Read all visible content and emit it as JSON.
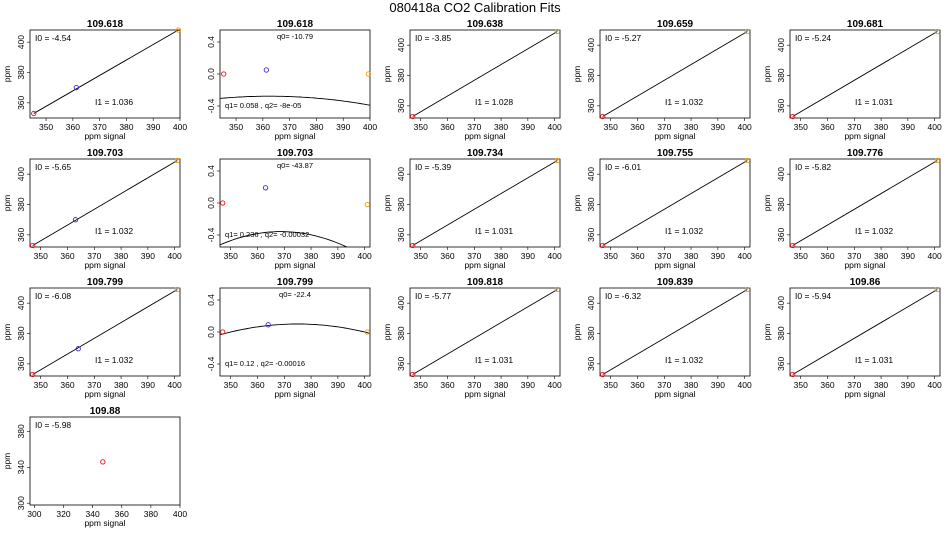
{
  "title": "080418a   CO2 Calibration Fits",
  "colors": {
    "low": "#e8101a",
    "mid": "#3a2fd0",
    "high": "#f09a00",
    "line": "#000000"
  },
  "chart_data": [
    {
      "type": "scatter",
      "title": "109.618",
      "xlabel": "ppm signal",
      "ylabel": "ppm",
      "xlim": [
        344,
        400
      ],
      "ylim": [
        350,
        408
      ],
      "xticks": [
        350,
        360,
        370,
        380,
        390,
        400
      ],
      "yticks": [
        360,
        380,
        400
      ],
      "fit": {
        "kind": "linear",
        "label_i0": "I0 =  -4.54",
        "label_i1": "I1 =  1.036"
      },
      "points": [
        {
          "x": 345.4,
          "y": 353,
          "c": "low"
        },
        {
          "x": 361.3,
          "y": 370,
          "c": "mid"
        },
        {
          "x": 399.4,
          "y": 408,
          "c": "high"
        }
      ]
    },
    {
      "type": "scatter",
      "title": "109.618",
      "xlabel": "ppm signal",
      "ylabel": "",
      "xlim": [
        344,
        400
      ],
      "ylim": [
        -0.55,
        0.55
      ],
      "xticks": [
        350,
        360,
        370,
        380,
        390,
        400
      ],
      "yticks": [
        -0.4,
        0,
        0.4
      ],
      "yfmt": "1",
      "fit": {
        "kind": "quad",
        "label_q0": "q0= -10.79",
        "label_q12": "q1= 0.058 , q2= -8e-05",
        "coef": [
          -10.79,
          0.058,
          -8e-05
        ]
      },
      "points": [
        {
          "x": 345.4,
          "y": 0.0,
          "c": "low"
        },
        {
          "x": 361.3,
          "y": 0.05,
          "c": "mid"
        },
        {
          "x": 399.4,
          "y": 0.0,
          "c": "high"
        }
      ]
    },
    {
      "type": "scatter",
      "title": "109.638",
      "xlabel": "ppm signal",
      "ylabel": "ppm",
      "xlim": [
        346,
        402
      ],
      "ylim": [
        352,
        410
      ],
      "xticks": [
        350,
        360,
        370,
        380,
        390,
        400
      ],
      "yticks": [
        360,
        380,
        400
      ],
      "fit": {
        "kind": "linear",
        "label_i0": "I0 =  -3.85",
        "label_i1": "I1 =  1.028"
      },
      "points": [
        {
          "x": 347,
          "y": 353,
          "c": "low"
        },
        {
          "x": 401,
          "y": 409,
          "c": "high"
        }
      ]
    },
    {
      "type": "scatter",
      "title": "109.659",
      "xlabel": "ppm signal",
      "ylabel": "ppm",
      "xlim": [
        346,
        402
      ],
      "ylim": [
        352,
        410
      ],
      "xticks": [
        350,
        360,
        370,
        380,
        390,
        400
      ],
      "yticks": [
        360,
        380,
        400
      ],
      "fit": {
        "kind": "linear",
        "label_i0": "I0 =  -5.27",
        "label_i1": "I1 =  1.032"
      },
      "points": [
        {
          "x": 347,
          "y": 353,
          "c": "low"
        },
        {
          "x": 401,
          "y": 409,
          "c": "high"
        }
      ]
    },
    {
      "type": "scatter",
      "title": "109.681",
      "xlabel": "ppm signal",
      "ylabel": "ppm",
      "xlim": [
        346,
        402
      ],
      "ylim": [
        352,
        410
      ],
      "xticks": [
        350,
        360,
        370,
        380,
        390,
        400
      ],
      "yticks": [
        360,
        380,
        400
      ],
      "fit": {
        "kind": "linear",
        "label_i0": "I0 =  -5.24",
        "label_i1": "I1 =  1.031"
      },
      "points": [
        {
          "x": 347,
          "y": 353,
          "c": "low"
        },
        {
          "x": 401,
          "y": 409,
          "c": "high"
        }
      ]
    },
    {
      "type": "scatter",
      "title": "109.703",
      "xlabel": "ppm signal",
      "ylabel": "ppm",
      "xlim": [
        346,
        402
      ],
      "ylim": [
        352,
        410
      ],
      "xticks": [
        350,
        360,
        370,
        380,
        390,
        400
      ],
      "yticks": [
        360,
        380,
        400
      ],
      "fit": {
        "kind": "linear",
        "label_i0": "I0 =  -5.65",
        "label_i1": "I1 =  1.032"
      },
      "points": [
        {
          "x": 347,
          "y": 353,
          "c": "low"
        },
        {
          "x": 363,
          "y": 370,
          "c": "mid"
        },
        {
          "x": 401,
          "y": 409,
          "c": "high"
        }
      ]
    },
    {
      "type": "scatter",
      "title": "109.703",
      "xlabel": "ppm signal",
      "ylabel": "",
      "xlim": [
        346,
        402
      ],
      "ylim": [
        -0.55,
        0.55
      ],
      "xticks": [
        350,
        360,
        370,
        380,
        390,
        400
      ],
      "yticks": [
        -0.4,
        0,
        0.4
      ],
      "yfmt": "1",
      "fit": {
        "kind": "quad",
        "label_q0": "q0= -43.87",
        "label_q12": "q1= 0.236 , q2= -0.00032",
        "coef": [
          -43.87,
          0.236,
          -0.00032
        ]
      },
      "points": [
        {
          "x": 347,
          "y": 0.0,
          "c": "low"
        },
        {
          "x": 363,
          "y": 0.19,
          "c": "mid"
        },
        {
          "x": 401,
          "y": -0.02,
          "c": "high"
        }
      ]
    },
    {
      "type": "scatter",
      "title": "109.734",
      "xlabel": "ppm signal",
      "ylabel": "ppm",
      "xlim": [
        346,
        402
      ],
      "ylim": [
        352,
        410
      ],
      "xticks": [
        350,
        360,
        370,
        380,
        390,
        400
      ],
      "yticks": [
        360,
        380,
        400
      ],
      "fit": {
        "kind": "linear",
        "label_i0": "I0 =  -5.39",
        "label_i1": "I1 =  1.031"
      },
      "points": [
        {
          "x": 347,
          "y": 353,
          "c": "low"
        },
        {
          "x": 401,
          "y": 409,
          "c": "high"
        }
      ]
    },
    {
      "type": "scatter",
      "title": "109.755",
      "xlabel": "ppm signal",
      "ylabel": "ppm",
      "xlim": [
        346,
        402
      ],
      "ylim": [
        352,
        410
      ],
      "xticks": [
        350,
        360,
        370,
        380,
        390,
        400
      ],
      "yticks": [
        360,
        380,
        400
      ],
      "fit": {
        "kind": "linear",
        "label_i0": "I0 =  -6.01",
        "label_i1": "I1 =  1.032"
      },
      "points": [
        {
          "x": 347,
          "y": 353,
          "c": "low"
        },
        {
          "x": 401,
          "y": 409,
          "c": "high"
        }
      ]
    },
    {
      "type": "scatter",
      "title": "109.776",
      "xlabel": "ppm signal",
      "ylabel": "ppm",
      "xlim": [
        346,
        402
      ],
      "ylim": [
        352,
        410
      ],
      "xticks": [
        350,
        360,
        370,
        380,
        390,
        400
      ],
      "yticks": [
        360,
        380,
        400
      ],
      "fit": {
        "kind": "linear",
        "label_i0": "I0 =  -5.82",
        "label_i1": "I1 =  1.032"
      },
      "points": [
        {
          "x": 347,
          "y": 353,
          "c": "low"
        },
        {
          "x": 401,
          "y": 409,
          "c": "high"
        }
      ]
    },
    {
      "type": "scatter",
      "title": "109.799",
      "xlabel": "ppm signal",
      "ylabel": "ppm",
      "xlim": [
        346,
        402
      ],
      "ylim": [
        352,
        410
      ],
      "xticks": [
        350,
        360,
        370,
        380,
        390,
        400
      ],
      "yticks": [
        360,
        380,
        400
      ],
      "fit": {
        "kind": "linear",
        "label_i0": "I0 =  -6.08",
        "label_i1": "I1 =  1.032"
      },
      "points": [
        {
          "x": 347,
          "y": 353,
          "c": "low"
        },
        {
          "x": 364,
          "y": 370,
          "c": "mid"
        },
        {
          "x": 401,
          "y": 409,
          "c": "high"
        }
      ]
    },
    {
      "type": "scatter",
      "title": "109.799",
      "xlabel": "ppm signal",
      "ylabel": "",
      "xlim": [
        346,
        402
      ],
      "ylim": [
        -0.55,
        0.55
      ],
      "xticks": [
        350,
        360,
        370,
        380,
        390,
        400
      ],
      "yticks": [
        -0.4,
        0,
        0.4
      ],
      "yfmt": "1",
      "fit": {
        "kind": "quad",
        "label_q0": "q0= -22.4",
        "label_q12": "q1= 0.12 , q2= -0.00016",
        "coef": [
          -22.4,
          0.12,
          -0.00016
        ]
      },
      "points": [
        {
          "x": 347,
          "y": 0.0,
          "c": "low"
        },
        {
          "x": 364,
          "y": 0.09,
          "c": "mid"
        },
        {
          "x": 401,
          "y": 0.0,
          "c": "high"
        }
      ]
    },
    {
      "type": "scatter",
      "title": "109.818",
      "xlabel": "ppm signal",
      "ylabel": "ppm",
      "xlim": [
        346,
        402
      ],
      "ylim": [
        352,
        410
      ],
      "xticks": [
        350,
        360,
        370,
        380,
        390,
        400
      ],
      "yticks": [
        360,
        380,
        400
      ],
      "fit": {
        "kind": "linear",
        "label_i0": "I0 =  -5.77",
        "label_i1": "I1 =  1.031"
      },
      "points": [
        {
          "x": 347,
          "y": 353,
          "c": "low"
        },
        {
          "x": 401,
          "y": 409,
          "c": "high"
        }
      ]
    },
    {
      "type": "scatter",
      "title": "109.839",
      "xlabel": "ppm signal",
      "ylabel": "ppm",
      "xlim": [
        346,
        402
      ],
      "ylim": [
        352,
        410
      ],
      "xticks": [
        350,
        360,
        370,
        380,
        390,
        400
      ],
      "yticks": [
        360,
        380,
        400
      ],
      "fit": {
        "kind": "linear",
        "label_i0": "I0 =  -6.32",
        "label_i1": "I1 =  1.032"
      },
      "points": [
        {
          "x": 347,
          "y": 353,
          "c": "low"
        },
        {
          "x": 401,
          "y": 409,
          "c": "high"
        }
      ]
    },
    {
      "type": "scatter",
      "title": "109.86",
      "xlabel": "ppm signal",
      "ylabel": "ppm",
      "xlim": [
        346,
        402
      ],
      "ylim": [
        352,
        410
      ],
      "xticks": [
        350,
        360,
        370,
        380,
        390,
        400
      ],
      "yticks": [
        360,
        380,
        400
      ],
      "fit": {
        "kind": "linear",
        "label_i0": "I0 =  -5.94",
        "label_i1": "I1 =  1.031"
      },
      "points": [
        {
          "x": 347,
          "y": 353,
          "c": "low"
        },
        {
          "x": 401,
          "y": 409,
          "c": "high"
        }
      ]
    },
    {
      "type": "scatter",
      "title": "109.88",
      "xlabel": "ppm signal",
      "ylabel": "ppm",
      "xlim": [
        297,
        400
      ],
      "ylim": [
        298,
        396
      ],
      "xticks": [
        300,
        320,
        340,
        360,
        380,
        400
      ],
      "yticks": [
        300,
        340,
        380
      ],
      "fit": {
        "kind": "none",
        "label_i0": "I0 =  -5.98"
      },
      "points": [
        {
          "x": 347,
          "y": 346,
          "c": "low"
        }
      ]
    }
  ]
}
